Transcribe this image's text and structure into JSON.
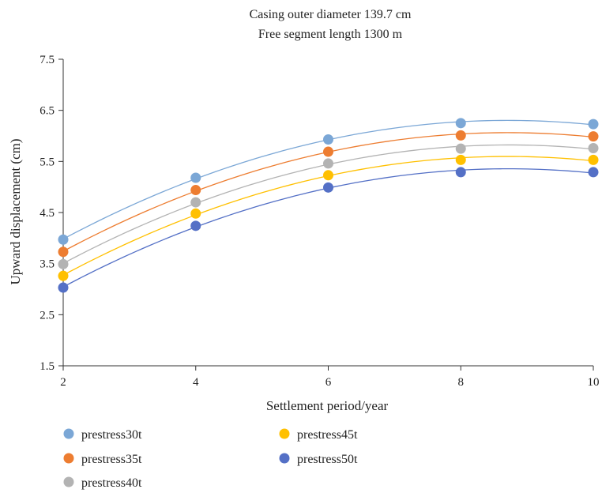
{
  "chart_data": {
    "type": "scatter",
    "title": [
      "Casing outer diameter 139.7 cm",
      "Free segment length 1300  m"
    ],
    "xlabel": "Settlement period/year",
    "ylabel": "Upward displacement (cm)",
    "xlim": [
      2,
      10
    ],
    "ylim": [
      1.5,
      7.5
    ],
    "x_ticks": [
      "2",
      "4",
      "6",
      "8",
      "10"
    ],
    "y_ticks": [
      "1.5",
      "2.5",
      "3.5",
      "4.5",
      "5.5",
      "6.5",
      "7.5"
    ],
    "grid": false,
    "trendline": "polynomial",
    "legend_position": "bottom",
    "x": [
      2,
      4,
      6,
      8,
      10
    ],
    "series": [
      {
        "name": "prestress30t",
        "color": "#7ba7d6",
        "values": [
          3.97,
          5.18,
          5.93,
          6.25,
          6.23
        ]
      },
      {
        "name": "prestress35t",
        "color": "#ed7d31",
        "values": [
          3.73,
          4.94,
          5.69,
          6.01,
          5.99
        ]
      },
      {
        "name": "prestress40t",
        "color": "#b3b3b3",
        "values": [
          3.49,
          4.7,
          5.46,
          5.75,
          5.76
        ]
      },
      {
        "name": "prestress45t",
        "color": "#ffc000",
        "values": [
          3.26,
          4.48,
          5.23,
          5.53,
          5.53
        ]
      },
      {
        "name": "prestress50t",
        "color": "#5470c6",
        "values": [
          3.03,
          4.24,
          4.99,
          5.29,
          5.29
        ]
      }
    ]
  }
}
